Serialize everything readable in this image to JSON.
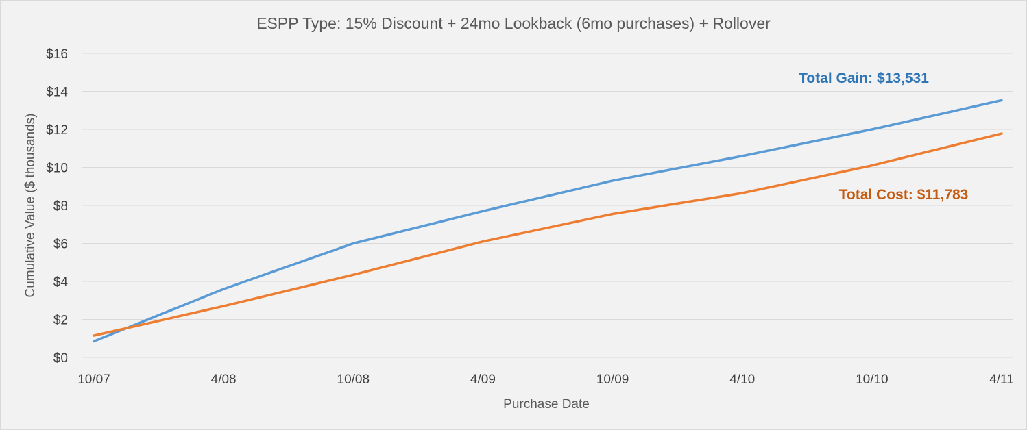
{
  "chart_data": {
    "type": "line",
    "title": "ESPP Type: 15% Discount + 24mo Lookback (6mo purchases) + Rollover",
    "xlabel": "Purchase Date",
    "ylabel": "Cumulative Value ($ thousands)",
    "categories": [
      "10/07",
      "4/08",
      "10/08",
      "4/09",
      "10/09",
      "4/10",
      "10/10",
      "4/11"
    ],
    "ylim": [
      0,
      16
    ],
    "yticks": [
      0,
      2,
      4,
      6,
      8,
      10,
      12,
      14,
      16
    ],
    "ytick_labels": [
      "$0",
      "$2",
      "$4",
      "$6",
      "$8",
      "$10",
      "$12",
      "$14",
      "$16"
    ],
    "grid": true,
    "series": [
      {
        "key": "gain",
        "color": "#5b9bd5",
        "values": [
          0.85,
          3.6,
          6.0,
          7.7,
          9.3,
          10.6,
          12.0,
          13.531
        ]
      },
      {
        "key": "cost",
        "color": "#ed7d31",
        "values": [
          1.15,
          2.7,
          4.35,
          6.1,
          7.55,
          8.65,
          10.1,
          11.783
        ]
      }
    ],
    "annotations": [
      {
        "series": "gain",
        "text": "Total Gain: $13,531",
        "color": "#2e75b6"
      },
      {
        "series": "cost",
        "text": "Total Cost: $11,783",
        "color": "#c55a11"
      }
    ]
  }
}
